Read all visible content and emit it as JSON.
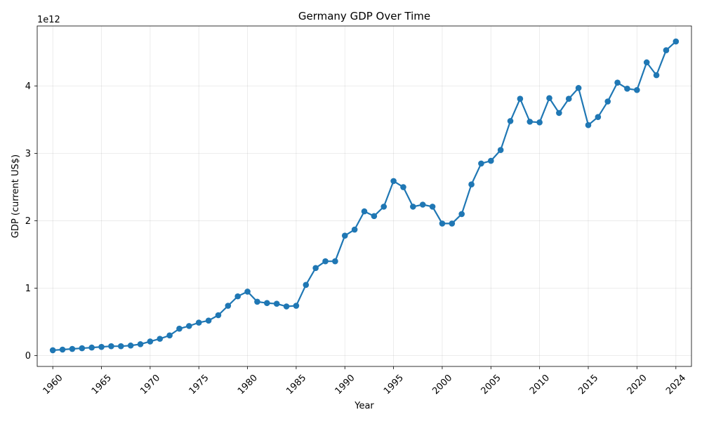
{
  "chart_data": {
    "type": "line",
    "title": "Germany GDP Over Time",
    "xlabel": "Year",
    "ylabel": "GDP (current US$)",
    "y_offset_label": "1e12",
    "xlim": [
      1958.4,
      2025.6
    ],
    "ylim": [
      -0.16,
      4.89
    ],
    "x_ticks": [
      1960,
      1965,
      1970,
      1975,
      1980,
      1985,
      1990,
      1995,
      2000,
      2005,
      2010,
      2015,
      2020,
      2024
    ],
    "y_ticks": [
      0,
      1,
      2,
      3,
      4
    ],
    "grid": true,
    "legend": "none",
    "color": "#1f77b4",
    "series": [
      {
        "x": [
          1960,
          1961,
          1962,
          1963,
          1964,
          1965,
          1966,
          1967,
          1968,
          1969,
          1970,
          1971,
          1972,
          1973,
          1974,
          1975,
          1976,
          1977,
          1978,
          1979,
          1980,
          1981,
          1982,
          1983,
          1984,
          1985,
          1986,
          1987,
          1988,
          1989,
          1990,
          1991,
          1992,
          1993,
          1994,
          1995,
          1996,
          1997,
          1998,
          1999,
          2000,
          2001,
          2002,
          2003,
          2004,
          2005,
          2006,
          2007,
          2008,
          2009,
          2010,
          2011,
          2012,
          2013,
          2014,
          2015,
          2016,
          2017,
          2018,
          2019,
          2020,
          2021,
          2022,
          2023,
          2024
        ],
        "values": [
          0.08,
          0.09,
          0.1,
          0.11,
          0.12,
          0.13,
          0.14,
          0.14,
          0.15,
          0.17,
          0.21,
          0.25,
          0.3,
          0.4,
          0.44,
          0.49,
          0.52,
          0.6,
          0.74,
          0.88,
          0.95,
          0.8,
          0.78,
          0.77,
          0.73,
          0.74,
          1.05,
          1.3,
          1.4,
          1.4,
          1.78,
          1.87,
          2.14,
          2.07,
          2.21,
          2.59,
          2.5,
          2.21,
          2.24,
          2.21,
          1.96,
          1.96,
          2.1,
          2.54,
          2.85,
          2.89,
          3.05,
          3.48,
          3.81,
          3.47,
          3.46,
          3.82,
          3.6,
          3.81,
          3.97,
          3.42,
          3.54,
          3.77,
          4.05,
          3.96,
          3.94,
          4.35,
          4.16,
          4.53,
          4.66
        ]
      }
    ]
  }
}
